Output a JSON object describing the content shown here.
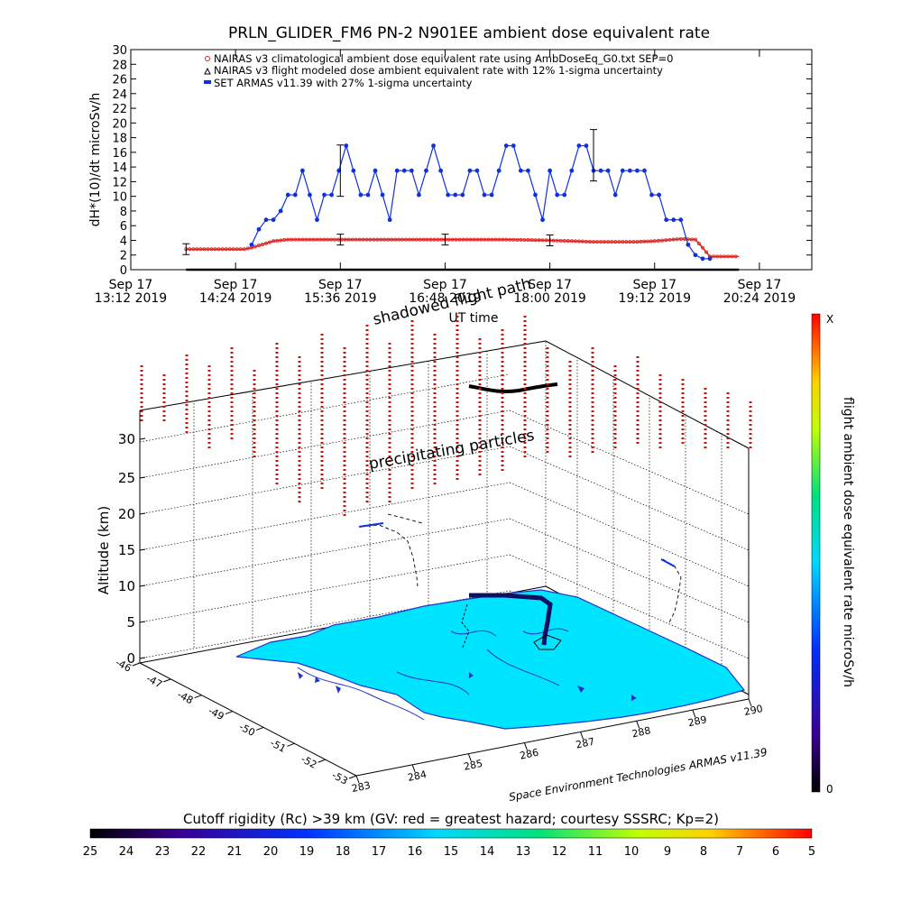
{
  "top_chart": {
    "title": "PRLN_GLIDER_FM6 PN-2 N901EE ambient dose equivalent rate",
    "ylabel": "dH*(10)/dt microSv/h",
    "xlabel": "UT time",
    "y_ticks": [
      "0",
      "2",
      "4",
      "6",
      "8",
      "10",
      "12",
      "14",
      "16",
      "18",
      "20",
      "22",
      "24",
      "26",
      "28",
      "30"
    ],
    "x_ticks": [
      {
        "line1": "Sep 17",
        "line2": "13:12 2019"
      },
      {
        "line1": "Sep 17",
        "line2": "14:24 2019"
      },
      {
        "line1": "Sep 17",
        "line2": "15:36 2019"
      },
      {
        "line1": "Sep 17",
        "line2": "16:48 2019"
      },
      {
        "line1": "Sep 17",
        "line2": "18:00 2019"
      },
      {
        "line1": "Sep 17",
        "line2": "19:12 2019"
      },
      {
        "line1": "Sep 17",
        "line2": "20:24 2019"
      }
    ],
    "legend": [
      "NAIRAS v3 climatological ambient dose equivalent rate using AmbDoseEq_G0.txt SEP=0",
      "NAIRAS v3 flight modeled dose ambient equivalent rate with 12% 1-sigma uncertainty",
      "SET ARMAS v11.39 with 27% 1-sigma uncertainty"
    ],
    "colors": {
      "climatological": "#dd2222",
      "modeled": "#000000",
      "armas": "#1030e0"
    }
  },
  "chart_data": [
    {
      "type": "line",
      "title": "PRLN_GLIDER_FM6 PN-2 N901EE ambient dose equivalent rate",
      "xlabel": "UT time",
      "ylabel": "dH*(10)/dt microSv/h",
      "xlim": [
        "2019-09-17 13:12",
        "2019-09-17 21:00"
      ],
      "ylim": [
        0,
        30
      ],
      "grid": false,
      "legend_position": "top-left",
      "series": [
        {
          "name": "NAIRAS v3 climatological ambient dose equivalent rate using AmbDoseEq_G0.txt SEP=0",
          "x": [
            "13:50",
            "14:30",
            "14:35",
            "14:40",
            "14:45",
            "14:50",
            "15:00",
            "15:10",
            "16:48",
            "17:30",
            "18:00",
            "18:30",
            "19:00",
            "19:12",
            "19:30",
            "19:40",
            "19:45",
            "19:50",
            "20:10"
          ],
          "y": [
            2.8,
            2.8,
            3.0,
            3.3,
            3.6,
            3.9,
            4.1,
            4.1,
            4.1,
            4.1,
            4.0,
            3.8,
            3.8,
            3.9,
            4.2,
            4.1,
            3.0,
            1.8,
            1.8
          ]
        },
        {
          "name": "NAIRAS v3 flight modeled dose ambient equivalent rate with 12% 1-sigma uncertainty",
          "x": [
            "13:50",
            "20:10"
          ],
          "y": [
            0.0,
            0.0
          ]
        },
        {
          "name": "SET ARMAS v11.39 with 27% 1-sigma uncertainty",
          "x": [
            "14:35",
            "14:40",
            "14:45",
            "14:50",
            "14:55",
            "15:00",
            "15:05",
            "15:10",
            "15:15",
            "15:20",
            "15:25",
            "15:30",
            "15:35",
            "15:40",
            "15:45",
            "15:50",
            "15:55",
            "16:00",
            "16:05",
            "16:10",
            "16:15",
            "16:20",
            "16:25",
            "16:30",
            "16:35",
            "16:40",
            "16:45",
            "16:50",
            "16:55",
            "17:00",
            "17:05",
            "17:10",
            "17:15",
            "17:20",
            "17:25",
            "17:30",
            "17:35",
            "17:40",
            "17:45",
            "17:50",
            "17:55",
            "18:00",
            "18:05",
            "18:10",
            "18:15",
            "18:20",
            "18:25",
            "18:30",
            "18:35",
            "18:40",
            "18:45",
            "18:50",
            "18:55",
            "19:00",
            "19:05",
            "19:10",
            "19:15",
            "19:20",
            "19:25",
            "19:30",
            "19:35",
            "19:40",
            "19:45",
            "19:50"
          ],
          "y": [
            3.4,
            5.5,
            6.8,
            6.8,
            8.0,
            10.2,
            10.2,
            13.5,
            10.2,
            6.8,
            10.2,
            10.2,
            13.5,
            16.9,
            13.5,
            10.2,
            10.2,
            13.5,
            10.2,
            6.8,
            13.5,
            13.5,
            13.5,
            10.2,
            13.5,
            16.9,
            13.5,
            10.2,
            10.2,
            10.2,
            13.5,
            13.5,
            10.2,
            10.2,
            13.5,
            16.9,
            16.9,
            13.5,
            13.5,
            10.2,
            6.8,
            13.5,
            10.2,
            10.2,
            13.5,
            16.9,
            16.9,
            13.5,
            13.5,
            13.5,
            10.2,
            13.5,
            13.5,
            13.5,
            13.5,
            10.2,
            10.2,
            6.8,
            6.8,
            6.8,
            3.4,
            2.0,
            1.5,
            1.5
          ]
        }
      ]
    },
    {
      "type": "scatter",
      "xlabel": "",
      "ylabel": "Altitude (km)",
      "zlim": [
        0,
        30
      ],
      "grid": true,
      "z_ticks": [
        "0",
        "5",
        "10",
        "15",
        "20",
        "25",
        "30"
      ],
      "lat_ticks": [
        "-46",
        "-47",
        "-48",
        "-49",
        "-50",
        "-51",
        "-52",
        "-53"
      ],
      "lon_ticks": [
        "283",
        "284",
        "285",
        "286",
        "287",
        "288",
        "289",
        "290"
      ],
      "series": [
        {
          "name": "precipitating particles"
        },
        {
          "name": "shadowed flight path"
        }
      ]
    }
  ],
  "bottom_chart": {
    "label_shadowed": "shadowed flight path",
    "label_precip": "precipitating particles",
    "zlabel": "Altitude (km)",
    "z_ticks": [
      "0",
      "5",
      "10",
      "15",
      "20",
      "25",
      "30"
    ],
    "lat_ticks": [
      "-46",
      "-47",
      "-48",
      "-49",
      "-50",
      "-51",
      "-52",
      "-53"
    ],
    "lon_ticks": [
      "283",
      "284",
      "285",
      "286",
      "287",
      "288",
      "289",
      "290"
    ],
    "credit": "Space Environment Technologies ARMAS v11.39",
    "colorbar_label": "flight ambient dose equivalent rate microSv/h",
    "colorbar_top": "X",
    "colorbar_bottom": "0",
    "cutoff_label": "Cutoff rigidity (Rc) >39 km (GV: red = greatest hazard; courtesy SSSRC; Kp=2)",
    "cutoff_ticks": [
      "25",
      "24",
      "23",
      "22",
      "21",
      "20",
      "19",
      "18",
      "17",
      "16",
      "15",
      "14",
      "13",
      "12",
      "11",
      "10",
      "9",
      "8",
      "7",
      "6",
      "5"
    ],
    "colors": {
      "land": "#00e5ff",
      "coast": "#2233cc",
      "precip": "#cc1010",
      "flight": "#000000"
    }
  }
}
